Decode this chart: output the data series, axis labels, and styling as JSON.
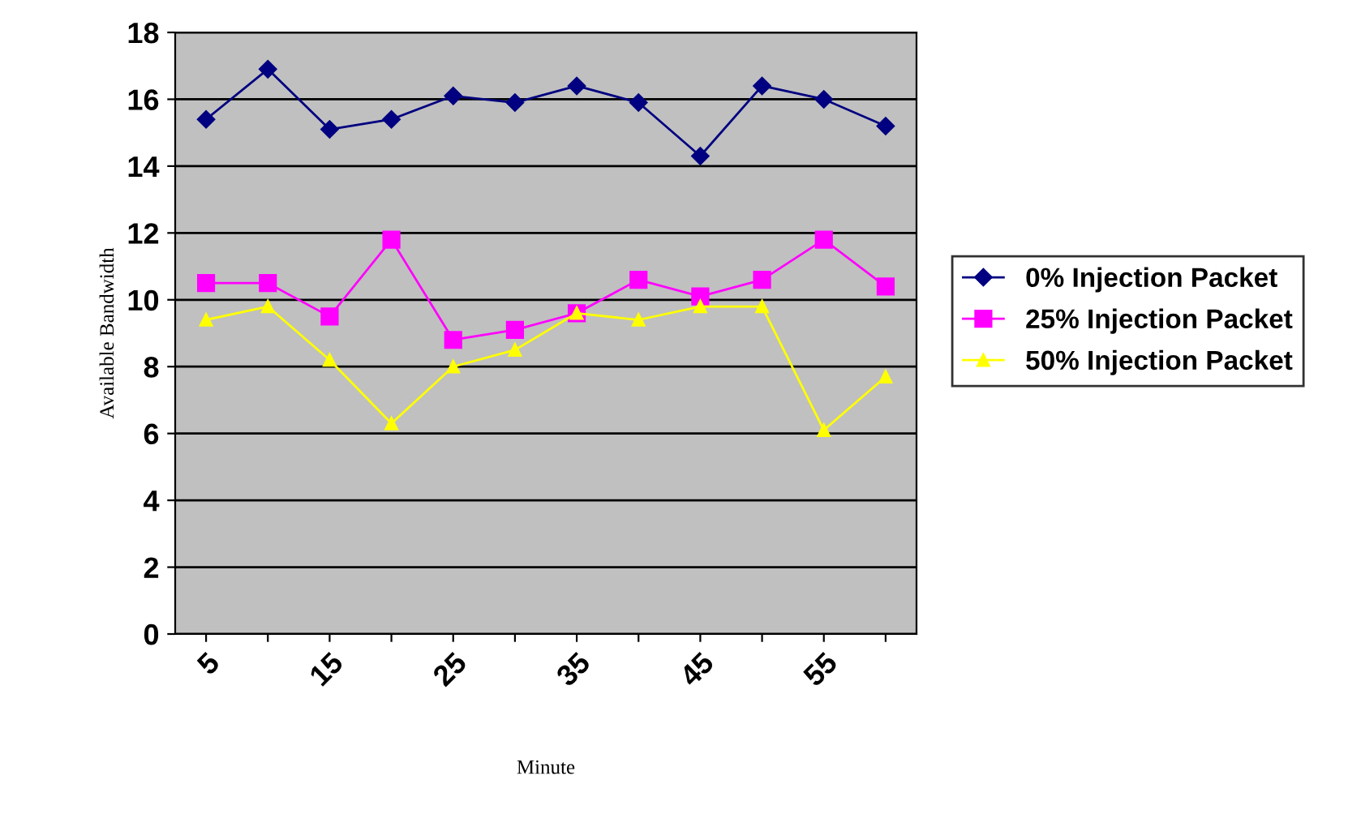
{
  "chart_data": {
    "type": "line",
    "xlabel": "Minute",
    "ylabel": "Available Bandwidth",
    "categories": [
      "5",
      null,
      "15",
      null,
      "25",
      null,
      "35",
      null,
      "45",
      null,
      "55",
      null
    ],
    "series": [
      {
        "name": "0% Injection Packet",
        "color": "#000080",
        "marker": "diamond",
        "values": [
          15.4,
          16.9,
          15.1,
          15.4,
          16.1,
          15.9,
          16.4,
          15.9,
          14.3,
          16.4,
          16.0,
          15.2
        ]
      },
      {
        "name": "25% Injection Packet",
        "color": "#ff00ff",
        "marker": "square",
        "values": [
          10.5,
          10.5,
          9.5,
          11.8,
          8.8,
          9.1,
          9.6,
          10.6,
          10.1,
          10.6,
          11.8,
          10.4
        ]
      },
      {
        "name": "50% Injection Packet",
        "color": "#ffff00",
        "marker": "triangle",
        "values": [
          9.4,
          9.8,
          8.2,
          6.3,
          8.0,
          8.5,
          9.6,
          9.4,
          9.8,
          9.8,
          6.1,
          7.7
        ]
      }
    ],
    "ylim": [
      0,
      18
    ],
    "yticks": [
      0,
      2,
      4,
      6,
      8,
      10,
      12,
      14,
      16,
      18
    ],
    "grid": "y",
    "legend": "right",
    "line_style": "solid"
  }
}
